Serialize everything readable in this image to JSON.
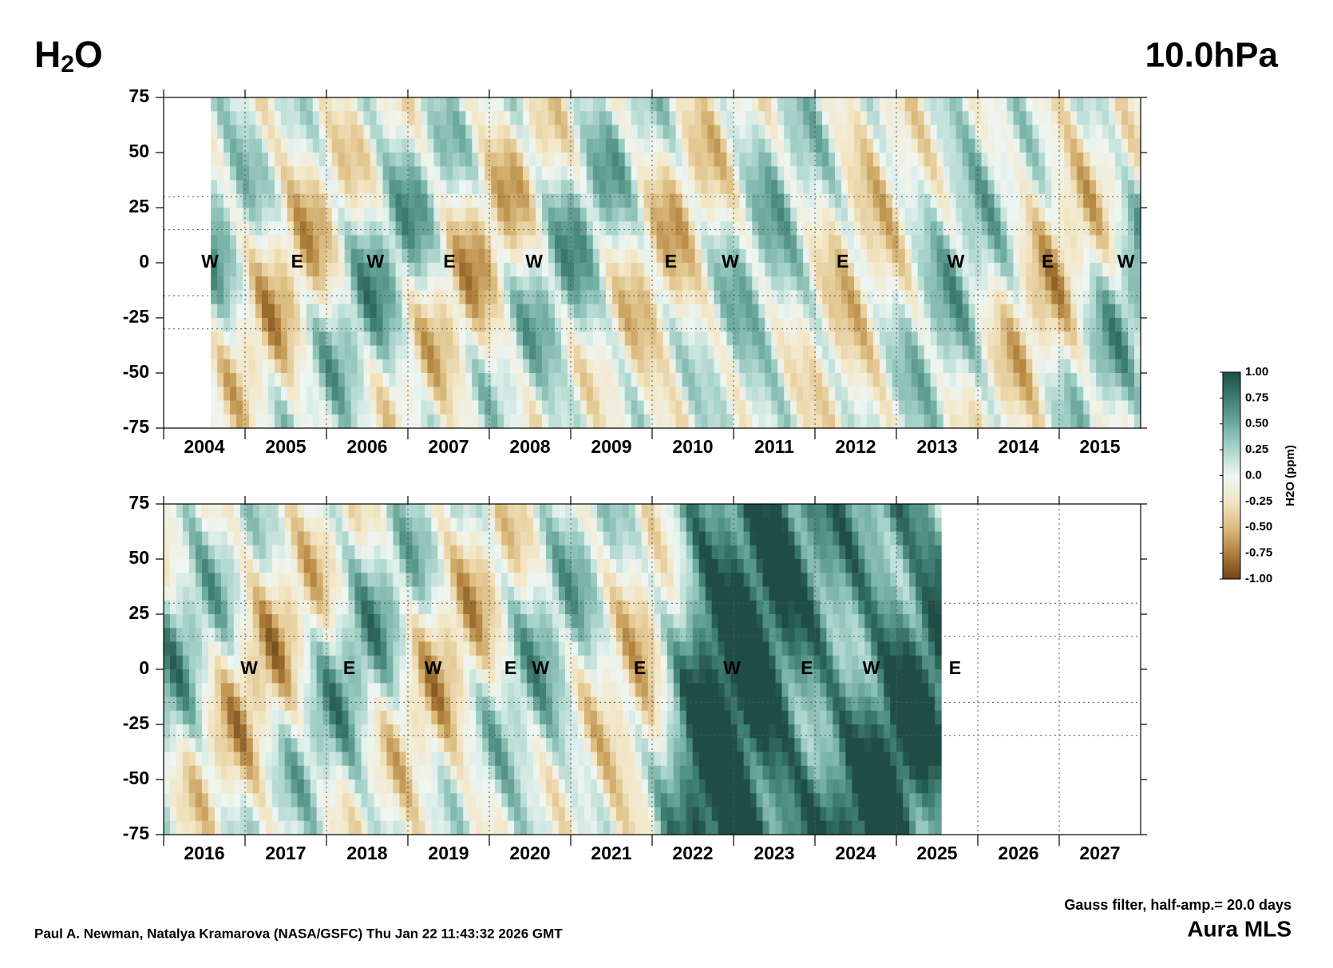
{
  "title": "H2O",
  "pressure": "10.0hPa",
  "filter_note": "Gauss filter, half-amp.= 20.0 days",
  "instrument": "Aura MLS",
  "credit": "Paul A. Newman, Natalya Kramarova (NASA/GSFC) Thu Jan 22 11:43:32 2026 GMT",
  "chart_data": [
    {
      "type": "heatmap",
      "xlim": [
        2004,
        2016
      ],
      "ylim": [
        -75,
        75
      ],
      "yticks": [
        75,
        50,
        25,
        0,
        -25,
        -50,
        -75
      ],
      "year_labels": [
        2004,
        2005,
        2006,
        2007,
        2008,
        2009,
        2010,
        2011,
        2012,
        2013,
        2014,
        2015
      ],
      "grid": true,
      "hgrid": [
        30,
        15,
        -15,
        -30
      ],
      "data_range": [
        2004.58,
        2016
      ],
      "annotations": [
        {
          "text": "W",
          "x": 2004.57,
          "y": 0
        },
        {
          "text": "E",
          "x": 2005.64,
          "y": 0
        },
        {
          "text": "W",
          "x": 2006.6,
          "y": 0
        },
        {
          "text": "E",
          "x": 2007.51,
          "y": 0
        },
        {
          "text": "W",
          "x": 2008.55,
          "y": 0
        },
        {
          "text": "E",
          "x": 2010.23,
          "y": 0
        },
        {
          "text": "W",
          "x": 2010.96,
          "y": 0
        },
        {
          "text": "E",
          "x": 2012.34,
          "y": 0
        },
        {
          "text": "W",
          "x": 2013.73,
          "y": 0
        },
        {
          "text": "E",
          "x": 2014.86,
          "y": 0
        },
        {
          "text": "W",
          "x": 2015.82,
          "y": 0
        }
      ]
    },
    {
      "type": "heatmap",
      "xlim": [
        2016,
        2028
      ],
      "ylim": [
        -75,
        75
      ],
      "yticks": [
        75,
        50,
        25,
        0,
        -25,
        -50,
        -75
      ],
      "year_labels": [
        2016,
        2017,
        2018,
        2019,
        2020,
        2021,
        2022,
        2023,
        2024,
        2025,
        2026,
        2027
      ],
      "grid": true,
      "hgrid": [
        30,
        15,
        -15,
        -30
      ],
      "data_range": [
        2016,
        2025.55
      ],
      "annotations": [
        {
          "text": "W",
          "x": 2017.05,
          "y": 0
        },
        {
          "text": "E",
          "x": 2018.28,
          "y": 0
        },
        {
          "text": "W",
          "x": 2019.31,
          "y": 0
        },
        {
          "text": "E",
          "x": 2020.26,
          "y": 0
        },
        {
          "text": "W",
          "x": 2020.63,
          "y": 0
        },
        {
          "text": "E",
          "x": 2021.85,
          "y": 0
        },
        {
          "text": "W",
          "x": 2022.98,
          "y": 0
        },
        {
          "text": "E",
          "x": 2023.9,
          "y": 0
        },
        {
          "text": "W",
          "x": 2024.69,
          "y": 0
        },
        {
          "text": "E",
          "x": 2025.72,
          "y": 0
        }
      ]
    }
  ],
  "colorbar": {
    "label": "H2O (ppm)",
    "ticks": [
      {
        "value": 1,
        "label": "1.00"
      },
      {
        "value": 0.75,
        "label": "0.75"
      },
      {
        "value": 0.5,
        "label": "0.50"
      },
      {
        "value": 0.25,
        "label": "0.25"
      },
      {
        "value": 0,
        "label": "0.0"
      },
      {
        "value": -0.25,
        "label": "-0.25"
      },
      {
        "value": -0.5,
        "label": "-0.50"
      },
      {
        "value": -0.75,
        "label": "-0.75"
      },
      {
        "value": -1,
        "label": "-1.00"
      }
    ],
    "colors": [
      "#1f4d45",
      "#3c7d72",
      "#6fab9f",
      "#acd6cd",
      "#eef6f3",
      "#f3e6c5",
      "#dcbd80",
      "#b1803b",
      "#6d4519"
    ]
  }
}
